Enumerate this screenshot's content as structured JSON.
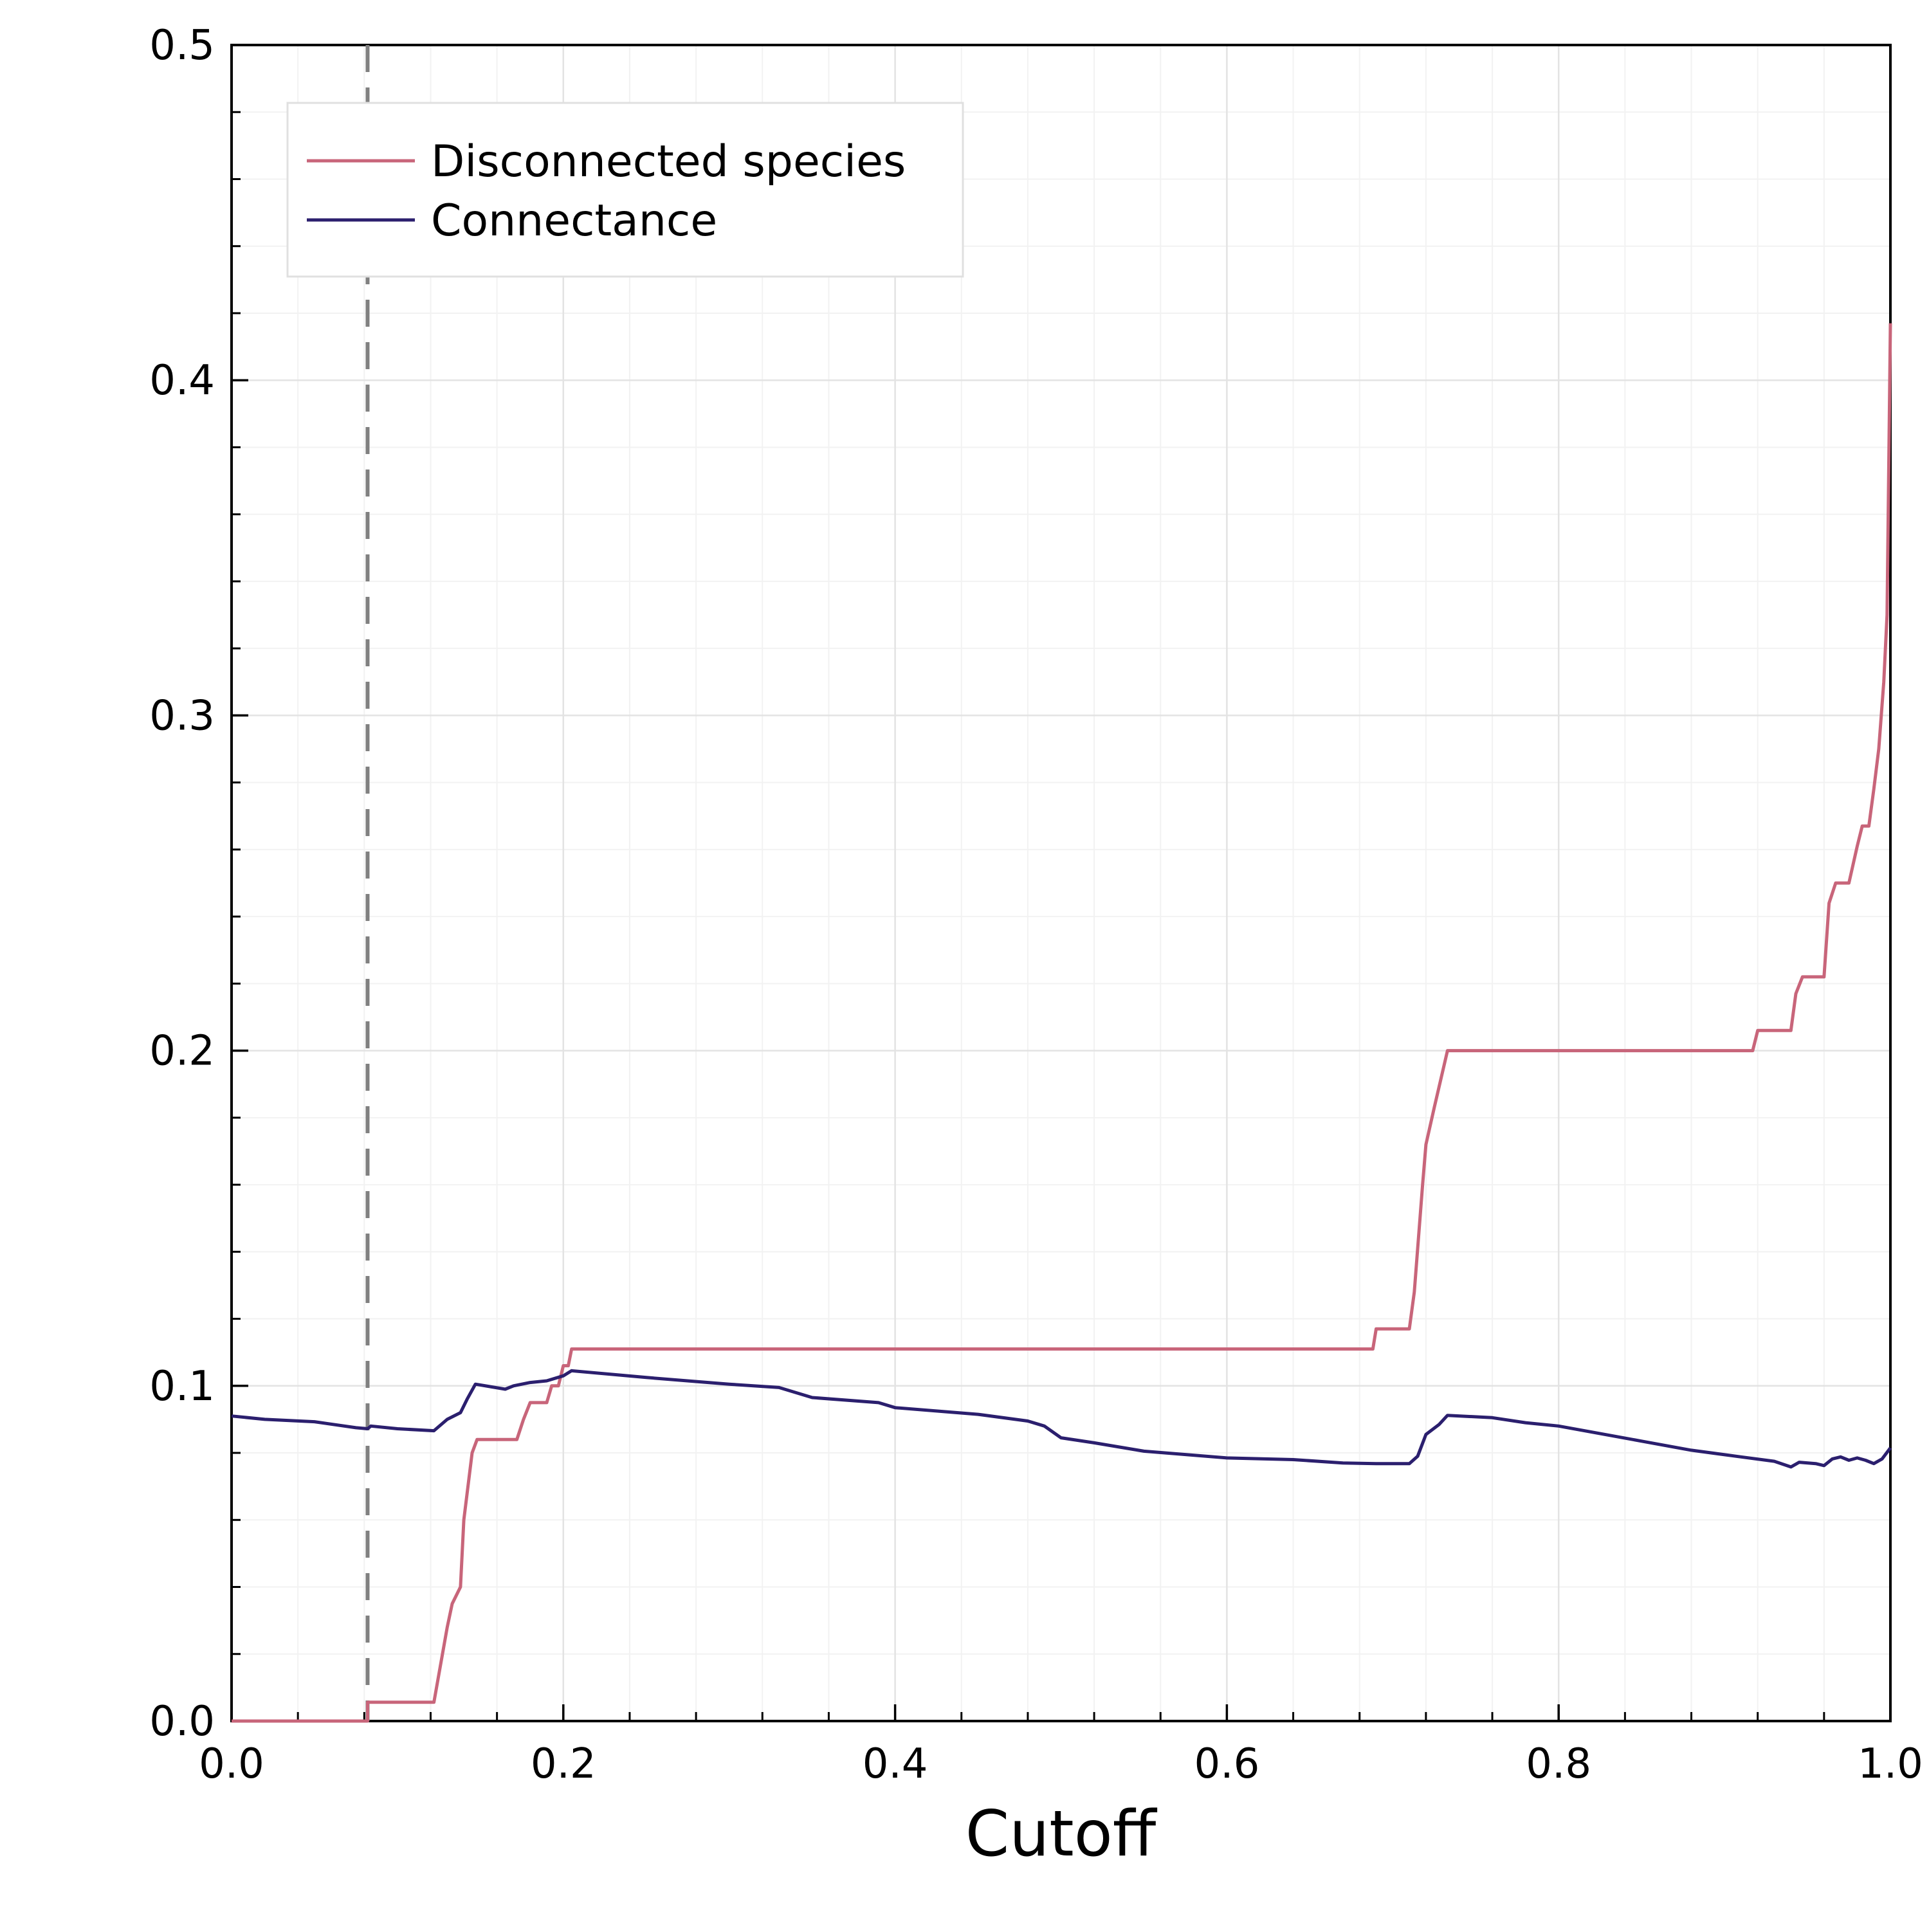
{
  "chart_data": {
    "type": "line",
    "title": "",
    "xlabel": "Cutoff",
    "ylabel": "",
    "xlim": [
      0.0,
      1.0
    ],
    "ylim": [
      0.0,
      0.5
    ],
    "xticks": [
      0.0,
      0.2,
      0.4,
      0.6,
      0.8,
      1.0
    ],
    "xtick_labels": [
      "0.0",
      "0.2",
      "0.4",
      "0.6",
      "0.8",
      "1.0"
    ],
    "yticks": [
      0.0,
      0.1,
      0.2,
      0.3,
      0.4,
      0.5
    ],
    "ytick_labels": [
      "0.0",
      "0.1",
      "0.2",
      "0.3",
      "0.4",
      "0.5"
    ],
    "grid": true,
    "legend_position": "top-left",
    "reference_line": {
      "x": 0.082,
      "style": "dashed",
      "color": "#808080"
    },
    "series": [
      {
        "name": "Disconnected species",
        "color": "#c8657a",
        "points": [
          [
            0.0,
            0.0
          ],
          [
            0.082,
            0.0
          ],
          [
            0.082,
            0.0056
          ],
          [
            0.122,
            0.0056
          ],
          [
            0.13,
            0.028
          ],
          [
            0.133,
            0.035
          ],
          [
            0.138,
            0.04
          ],
          [
            0.14,
            0.06
          ],
          [
            0.145,
            0.08
          ],
          [
            0.148,
            0.084
          ],
          [
            0.172,
            0.084
          ],
          [
            0.176,
            0.09
          ],
          [
            0.18,
            0.095
          ],
          [
            0.19,
            0.095
          ],
          [
            0.193,
            0.1
          ],
          [
            0.197,
            0.1
          ],
          [
            0.2,
            0.106
          ],
          [
            0.203,
            0.106
          ],
          [
            0.205,
            0.111
          ],
          [
            0.688,
            0.111
          ],
          [
            0.69,
            0.117
          ],
          [
            0.71,
            0.117
          ],
          [
            0.713,
            0.128
          ],
          [
            0.718,
            0.16
          ],
          [
            0.72,
            0.172
          ],
          [
            0.725,
            0.183
          ],
          [
            0.733,
            0.2
          ],
          [
            0.917,
            0.2
          ],
          [
            0.92,
            0.206
          ],
          [
            0.94,
            0.206
          ],
          [
            0.943,
            0.217
          ],
          [
            0.947,
            0.222
          ],
          [
            0.96,
            0.222
          ],
          [
            0.963,
            0.244
          ],
          [
            0.967,
            0.25
          ],
          [
            0.975,
            0.25
          ],
          [
            0.98,
            0.261
          ],
          [
            0.983,
            0.267
          ],
          [
            0.987,
            0.267
          ],
          [
            0.99,
            0.278
          ],
          [
            0.993,
            0.29
          ],
          [
            0.996,
            0.31
          ],
          [
            0.998,
            0.33
          ],
          [
            1.0,
            0.417
          ]
        ]
      },
      {
        "name": "Connectance",
        "color": "#2b1f6e",
        "points": [
          [
            0.0,
            0.091
          ],
          [
            0.02,
            0.09
          ],
          [
            0.05,
            0.0893
          ],
          [
            0.075,
            0.0875
          ],
          [
            0.082,
            0.0872
          ],
          [
            0.084,
            0.088
          ],
          [
            0.1,
            0.0872
          ],
          [
            0.122,
            0.0866
          ],
          [
            0.13,
            0.09
          ],
          [
            0.138,
            0.092
          ],
          [
            0.142,
            0.096
          ],
          [
            0.147,
            0.1005
          ],
          [
            0.165,
            0.099
          ],
          [
            0.17,
            0.1
          ],
          [
            0.18,
            0.101
          ],
          [
            0.19,
            0.1015
          ],
          [
            0.2,
            0.103
          ],
          [
            0.205,
            0.1045
          ],
          [
            0.25,
            0.1025
          ],
          [
            0.3,
            0.1005
          ],
          [
            0.33,
            0.0995
          ],
          [
            0.35,
            0.0965
          ],
          [
            0.39,
            0.095
          ],
          [
            0.4,
            0.0935
          ],
          [
            0.45,
            0.0915
          ],
          [
            0.48,
            0.0895
          ],
          [
            0.49,
            0.088
          ],
          [
            0.5,
            0.0845
          ],
          [
            0.52,
            0.083
          ],
          [
            0.55,
            0.0805
          ],
          [
            0.6,
            0.0785
          ],
          [
            0.64,
            0.078
          ],
          [
            0.67,
            0.077
          ],
          [
            0.69,
            0.0768
          ],
          [
            0.71,
            0.0768
          ],
          [
            0.715,
            0.079
          ],
          [
            0.72,
            0.0855
          ],
          [
            0.728,
            0.0885
          ],
          [
            0.733,
            0.0912
          ],
          [
            0.76,
            0.0905
          ],
          [
            0.78,
            0.089
          ],
          [
            0.8,
            0.088
          ],
          [
            0.82,
            0.0862
          ],
          [
            0.85,
            0.0835
          ],
          [
            0.88,
            0.0808
          ],
          [
            0.91,
            0.0788
          ],
          [
            0.93,
            0.0775
          ],
          [
            0.94,
            0.0758
          ],
          [
            0.945,
            0.0772
          ],
          [
            0.955,
            0.0768
          ],
          [
            0.96,
            0.0762
          ],
          [
            0.965,
            0.0782
          ],
          [
            0.97,
            0.0788
          ],
          [
            0.975,
            0.0778
          ],
          [
            0.98,
            0.0785
          ],
          [
            0.985,
            0.0778
          ],
          [
            0.99,
            0.0768
          ],
          [
            0.995,
            0.0782
          ],
          [
            1.0,
            0.0815
          ]
        ]
      }
    ]
  }
}
